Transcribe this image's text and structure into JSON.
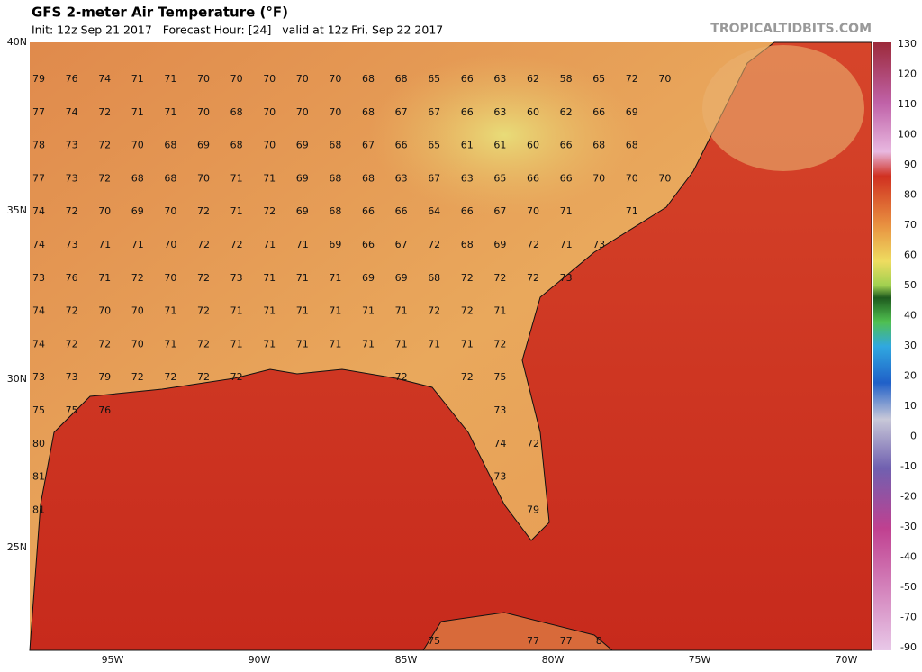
{
  "header": {
    "title": "GFS 2-meter Air Temperature (°F)",
    "subtitle": "Init: 12z Sep 21 2017   Forecast Hour: [24]   valid at 12z Fri, Sep 22 2017",
    "credit": "TROPICALTIDBITS.COM"
  },
  "latitude_labels": [
    "40N",
    "35N",
    "30N",
    "25N"
  ],
  "longitude_labels": [
    "95W",
    "90W",
    "85W",
    "80W",
    "75W",
    "70W"
  ],
  "colorbar_labels": [
    "130",
    "120",
    "110",
    "100",
    "90",
    "80",
    "70",
    "60",
    "50",
    "40",
    "30",
    "20",
    "10",
    "0",
    "-10",
    "-20",
    "-30",
    "-40",
    "-50",
    "-70",
    "-90"
  ],
  "grid": {
    "rows": [
      [
        "79",
        "76",
        "74",
        "71",
        "71",
        "70",
        "70",
        "70",
        "70",
        "70",
        "68",
        "68",
        "65",
        "66",
        "63",
        "62",
        "58",
        "65",
        "72",
        "70"
      ],
      [
        "77",
        "74",
        "72",
        "71",
        "71",
        "70",
        "68",
        "70",
        "70",
        "70",
        "68",
        "67",
        "67",
        "66",
        "63",
        "60",
        "62",
        "66",
        "69",
        null
      ],
      [
        "78",
        "73",
        "72",
        "70",
        "68",
        "69",
        "68",
        "70",
        "69",
        "68",
        "67",
        "66",
        "65",
        "61",
        "61",
        "60",
        "66",
        "68",
        "68",
        null
      ],
      [
        "77",
        "73",
        "72",
        "68",
        "68",
        "70",
        "71",
        "71",
        "69",
        "68",
        "68",
        "63",
        "67",
        "63",
        "65",
        "66",
        "66",
        "70",
        "70",
        "70"
      ],
      [
        "74",
        "72",
        "70",
        "69",
        "70",
        "72",
        "71",
        "72",
        "69",
        "68",
        "66",
        "66",
        "64",
        "66",
        "67",
        "70",
        "71",
        null,
        "71",
        null
      ],
      [
        "74",
        "73",
        "71",
        "71",
        "70",
        "72",
        "72",
        "71",
        "71",
        "69",
        "66",
        "67",
        "72",
        "68",
        "69",
        "72",
        "71",
        "73",
        null,
        null
      ],
      [
        "73",
        "76",
        "71",
        "72",
        "70",
        "72",
        "73",
        "71",
        "71",
        "71",
        "69",
        "69",
        "68",
        "72",
        "72",
        "72",
        "73",
        null,
        null,
        null
      ],
      [
        "74",
        "72",
        "70",
        "70",
        "71",
        "72",
        "71",
        "71",
        "71",
        "71",
        "71",
        "71",
        "72",
        "72",
        "71",
        null,
        null,
        null,
        null,
        null
      ],
      [
        "74",
        "72",
        "72",
        "70",
        "71",
        "72",
        "71",
        "71",
        "71",
        "71",
        "71",
        "71",
        "71",
        "71",
        "72",
        null,
        null,
        null,
        null,
        null
      ],
      [
        "73",
        "73",
        "79",
        "72",
        "72",
        "72",
        "72",
        null,
        null,
        null,
        null,
        "72",
        null,
        "72",
        "75",
        null,
        null,
        null,
        null,
        null
      ],
      [
        "75",
        "75",
        "76",
        null,
        null,
        null,
        null,
        null,
        null,
        null,
        null,
        null,
        null,
        null,
        "73",
        null,
        null,
        null,
        null,
        null
      ],
      [
        "80",
        null,
        null,
        null,
        null,
        null,
        null,
        null,
        null,
        null,
        null,
        null,
        null,
        null,
        "74",
        "72",
        null,
        null,
        null,
        null
      ],
      [
        "81",
        null,
        null,
        null,
        null,
        null,
        null,
        null,
        null,
        null,
        null,
        null,
        null,
        null,
        "73",
        null,
        null,
        null,
        null,
        null
      ],
      [
        "81",
        null,
        null,
        null,
        null,
        null,
        null,
        null,
        null,
        null,
        null,
        null,
        null,
        null,
        null,
        "79",
        null,
        null,
        null,
        null
      ],
      [
        null,
        null,
        null,
        null,
        null,
        null,
        null,
        null,
        null,
        null,
        null,
        null,
        "75",
        null,
        null,
        "77",
        "77",
        "8",
        null,
        null
      ]
    ]
  }
}
